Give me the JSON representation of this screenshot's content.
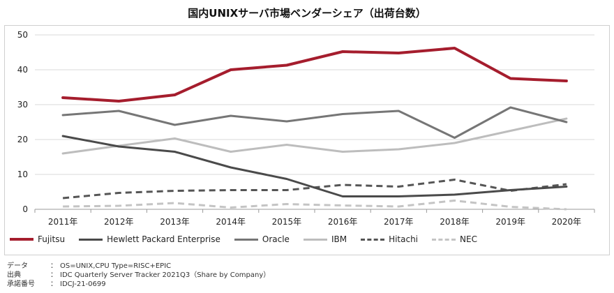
{
  "chart_data": {
    "type": "line",
    "title": "国内UNIXサーバ市場ベンダーシェア（出荷台数）",
    "xlabel": "",
    "ylabel": "",
    "categories": [
      "2011年",
      "2012年",
      "2013年",
      "2014年",
      "2015年",
      "2016年",
      "2017年",
      "2018年",
      "2019年",
      "2020年"
    ],
    "ylim": [
      0,
      50
    ],
    "yticks": [
      0,
      10,
      20,
      30,
      40,
      50
    ],
    "grid": true,
    "legend": "bottom",
    "series": [
      {
        "name": "Fujitsu",
        "color": "#a51d2d",
        "style": "solid",
        "width": 4,
        "values": [
          32,
          31,
          32.8,
          40,
          41.3,
          45.2,
          44.8,
          46.2,
          37.5,
          36.8
        ]
      },
      {
        "name": "Hewlett Packard Enterprise",
        "color": "#4a4a4a",
        "style": "solid",
        "width": 3,
        "values": [
          21,
          18,
          16.5,
          12,
          8.7,
          3.7,
          3.7,
          4.2,
          5.5,
          6.5
        ]
      },
      {
        "name": "Oracle",
        "color": "#767676",
        "style": "solid",
        "width": 3,
        "values": [
          27,
          28.2,
          24.2,
          26.8,
          25.2,
          27.3,
          28.2,
          20.5,
          29.2,
          25
        ]
      },
      {
        "name": "IBM",
        "color": "#bdbdbd",
        "style": "solid",
        "width": 3,
        "values": [
          16,
          18.2,
          20.3,
          16.5,
          18.5,
          16.5,
          17.2,
          19,
          22.5,
          26
        ]
      },
      {
        "name": "Hitachi",
        "color": "#555555",
        "style": "dashed",
        "width": 3,
        "values": [
          3.2,
          4.7,
          5.3,
          5.5,
          5.5,
          7,
          6.5,
          8.5,
          5.3,
          7.2
        ]
      },
      {
        "name": "NEC",
        "color": "#c4c4c4",
        "style": "dashed",
        "width": 3,
        "values": [
          0.8,
          1,
          1.8,
          0.5,
          1.5,
          1.1,
          0.8,
          2.5,
          0.7,
          0
        ]
      }
    ]
  },
  "notes": [
    {
      "key": "データ",
      "colon": "：",
      "value": "OS=UNIX,CPU Type=RISC+EPIC"
    },
    {
      "key": "出典",
      "colon": "：",
      "value": "IDC Quarterly Server Tracker 2021Q3（Share by Company）"
    },
    {
      "key": "承諾番号",
      "colon": "：",
      "value": "IDCJ-21-0699"
    }
  ]
}
